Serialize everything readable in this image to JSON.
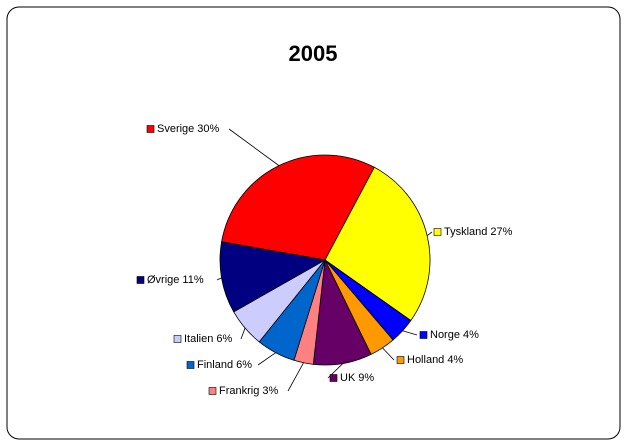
{
  "chart_data": {
    "type": "pie",
    "title": "2005",
    "categories": [
      "Sverige",
      "Tyskland",
      "Norge",
      "Holland",
      "UK",
      "Frankrig",
      "Finland",
      "Italien",
      "Øvrige"
    ],
    "values": [
      30,
      27,
      4,
      4,
      9,
      3,
      6,
      6,
      11
    ],
    "value_labels": [
      "30%",
      "27%",
      "4%",
      "4%",
      "9%",
      "3%",
      "6%",
      "6%",
      "11%"
    ],
    "colors": [
      "#ff0000",
      "#ffff00",
      "#0000ff",
      "#ff9900",
      "#660066",
      "#ff8080",
      "#0066cc",
      "#ccccff",
      "#000080"
    ]
  }
}
